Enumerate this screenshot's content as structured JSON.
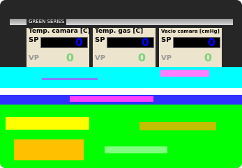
{
  "header": {
    "title": "GREEN SERIES"
  },
  "panels": [
    {
      "title": "Temp. camara [C]",
      "sp_label": "SP",
      "sp_value": "0",
      "vp_label": "VP",
      "vp_value": "0"
    },
    {
      "title": "Temp. gas [C]",
      "sp_label": "SP",
      "sp_value": "0",
      "vp_label": "VP",
      "vp_value": "0"
    },
    {
      "title": "Vacio camara [cmHg]",
      "sp_label": "SP",
      "sp_value": "0",
      "vp_label": "VP",
      "vp_value": "0"
    }
  ]
}
